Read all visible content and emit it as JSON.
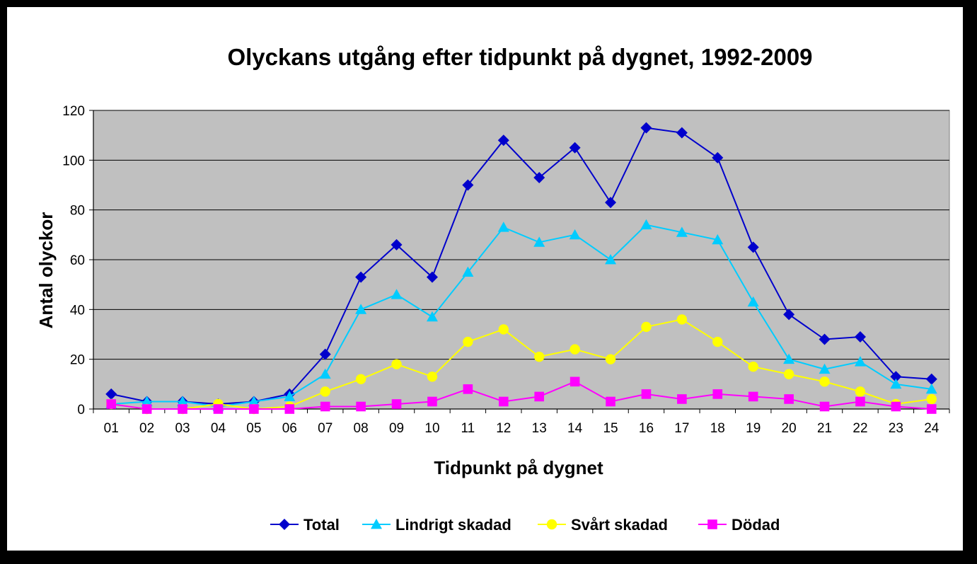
{
  "chart_data": {
    "type": "line",
    "title": "Olyckans utgång efter tidpunkt på dygnet, 1992-2009",
    "xlabel": "Tidpunkt på dygnet",
    "ylabel": "Antal olyckor",
    "categories": [
      "01",
      "02",
      "03",
      "04",
      "05",
      "06",
      "07",
      "08",
      "09",
      "10",
      "11",
      "12",
      "13",
      "14",
      "15",
      "16",
      "17",
      "18",
      "19",
      "20",
      "21",
      "22",
      "23",
      "24"
    ],
    "ylim": [
      0,
      120
    ],
    "yticks": [
      0,
      20,
      40,
      60,
      80,
      100,
      120
    ],
    "grid": true,
    "legend_position": "bottom",
    "plot_background": "#c0c0c0",
    "series": [
      {
        "name": "Total",
        "color": "#0000cc",
        "marker": "diamond",
        "values": [
          6,
          3,
          3,
          2,
          3,
          6,
          22,
          53,
          66,
          53,
          90,
          108,
          93,
          105,
          83,
          113,
          111,
          101,
          65,
          38,
          28,
          29,
          13,
          12
        ]
      },
      {
        "name": "Lindrigt skadad",
        "color": "#00ccff",
        "marker": "triangle",
        "values": [
          2,
          3,
          3,
          1,
          3,
          5,
          14,
          40,
          46,
          37,
          55,
          73,
          67,
          70,
          60,
          74,
          71,
          68,
          43,
          20,
          16,
          19,
          10,
          8
        ]
      },
      {
        "name": "Svårt skadad",
        "color": "#ffff00",
        "marker": "circle",
        "values": [
          2,
          0,
          0,
          2,
          0,
          1,
          7,
          12,
          18,
          13,
          27,
          32,
          21,
          24,
          20,
          33,
          36,
          27,
          17,
          14,
          11,
          7,
          2,
          4
        ]
      },
      {
        "name": "Dödad",
        "color": "#ff00ff",
        "marker": "square",
        "values": [
          2,
          0,
          0,
          0,
          0,
          0,
          1,
          1,
          2,
          3,
          8,
          3,
          5,
          11,
          3,
          6,
          4,
          6,
          5,
          4,
          1,
          3,
          1,
          0
        ]
      }
    ]
  }
}
